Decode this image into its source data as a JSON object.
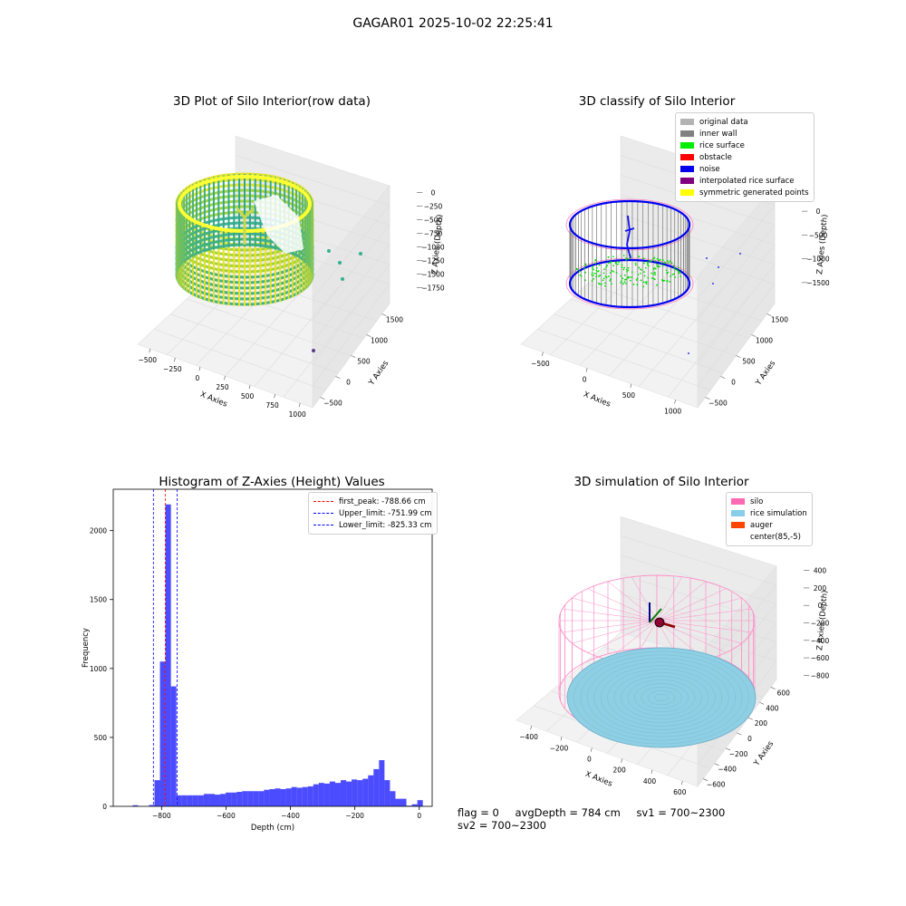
{
  "figure": {
    "suptitle": "GAGAR01 2025-10-02 22:25:41"
  },
  "panels": {
    "raw": {
      "title": "3D Plot of Silo Interior(row data)",
      "xlabel": "X Axies",
      "ylabel": "Y Axies",
      "zlabel": "Z Axies (Depth)",
      "xticks": [
        "−500",
        "−250",
        "0",
        "250",
        "500",
        "750",
        "1000"
      ],
      "yticks": [
        "−500",
        "0",
        "500",
        "1000",
        "1500"
      ],
      "zticks": [
        "0",
        "−250",
        "−500",
        "−750",
        "−1000",
        "−1250",
        "−1500",
        "−1750"
      ]
    },
    "classify": {
      "title": "3D classify of Silo Interior",
      "xlabel": "X Axies",
      "ylabel": "Y Axies",
      "zlabel": "Z Axies (Depth)",
      "xticks": [
        "−500",
        "0",
        "500",
        "1000"
      ],
      "yticks": [
        "−500",
        "0",
        "500",
        "1000",
        "1500"
      ],
      "zticks": [
        "0",
        "−500",
        "−1000",
        "−1500"
      ],
      "legend": [
        {
          "label": "original data",
          "color": "#b3b3b3"
        },
        {
          "label": "inner wall",
          "color": "#808080"
        },
        {
          "label": "rice surface",
          "color": "#00ee00"
        },
        {
          "label": "obstacle",
          "color": "#ff0000"
        },
        {
          "label": "noise",
          "color": "#0000ee"
        },
        {
          "label": "interpolated rice surface",
          "color": "#800080"
        },
        {
          "label": "symmetric generated points",
          "color": "#ffff00"
        }
      ]
    },
    "simulation": {
      "title": "3D simulation of Silo Interior",
      "xlabel": "X Axies",
      "ylabel": "Y Axies",
      "zlabel": "Z Axies (Depth)",
      "xticks": [
        "−400",
        "−200",
        "0",
        "200",
        "400",
        "600"
      ],
      "yticks": [
        "−600",
        "−400",
        "−200",
        "0",
        "200",
        "400",
        "600"
      ],
      "zticks": [
        "400",
        "200",
        "0",
        "−200",
        "−400",
        "−600",
        "−800"
      ],
      "legend": [
        {
          "label": "silo",
          "color": "#ff69b4"
        },
        {
          "label": "rice simulation",
          "color": "#87ceeb"
        },
        {
          "label": "auger",
          "color": "#ff4500"
        },
        {
          "label": "center(85,-5)",
          "color": "#ffffff"
        }
      ]
    }
  },
  "status": {
    "flag": "flag = 0",
    "avg_depth": "avgDepth = 784 cm",
    "sv1": "sv1 = 700~2300",
    "sv2": "sv2 = 700~2300"
  },
  "chart_data": {
    "type": "bar",
    "title": "Histogram of Z-Axies (Height) Values",
    "xlabel": "Depth (cm)",
    "ylabel": "Frequency",
    "xlim": [
      -950,
      40
    ],
    "ylim": [
      0,
      2300
    ],
    "xticks": [
      -800,
      -600,
      -400,
      -200,
      0
    ],
    "yticks": [
      0,
      500,
      1000,
      1500,
      2000
    ],
    "bar_color": "#0000ff",
    "bin_width": 17,
    "bins": [
      [
        -890,
        8
      ],
      [
        -873,
        0
      ],
      [
        -856,
        0
      ],
      [
        -839,
        10
      ],
      [
        -822,
        190
      ],
      [
        -805,
        1050
      ],
      [
        -788,
        2190
      ],
      [
        -771,
        870
      ],
      [
        -754,
        80
      ],
      [
        -737,
        80
      ],
      [
        -720,
        80
      ],
      [
        -703,
        80
      ],
      [
        -686,
        80
      ],
      [
        -669,
        90
      ],
      [
        -652,
        90
      ],
      [
        -635,
        85
      ],
      [
        -618,
        90
      ],
      [
        -601,
        100
      ],
      [
        -584,
        100
      ],
      [
        -567,
        105
      ],
      [
        -550,
        110
      ],
      [
        -533,
        110
      ],
      [
        -516,
        110
      ],
      [
        -499,
        110
      ],
      [
        -482,
        120
      ],
      [
        -465,
        125
      ],
      [
        -448,
        130
      ],
      [
        -431,
        125
      ],
      [
        -414,
        130
      ],
      [
        -397,
        140
      ],
      [
        -380,
        135
      ],
      [
        -363,
        140
      ],
      [
        -346,
        145
      ],
      [
        -329,
        160
      ],
      [
        -312,
        170
      ],
      [
        -295,
        165
      ],
      [
        -278,
        180
      ],
      [
        -261,
        170
      ],
      [
        -244,
        190
      ],
      [
        -227,
        180
      ],
      [
        -210,
        195
      ],
      [
        -193,
        190
      ],
      [
        -176,
        200
      ],
      [
        -159,
        225
      ],
      [
        -142,
        270
      ],
      [
        -125,
        335
      ],
      [
        -108,
        190
      ],
      [
        -91,
        110
      ],
      [
        -74,
        55
      ],
      [
        -57,
        55
      ],
      [
        -40,
        5
      ],
      [
        -23,
        15
      ],
      [
        -6,
        45
      ]
    ],
    "vlines": [
      {
        "label": "first_peak: -788.66 cm",
        "x": -788.66,
        "color": "#ff0000"
      },
      {
        "label": "Upper_limit: -751.99 cm",
        "x": -751.99,
        "color": "#0000ff"
      },
      {
        "label": "Lower_limit: -825.33 cm",
        "x": -825.33,
        "color": "#0000ff"
      }
    ]
  }
}
